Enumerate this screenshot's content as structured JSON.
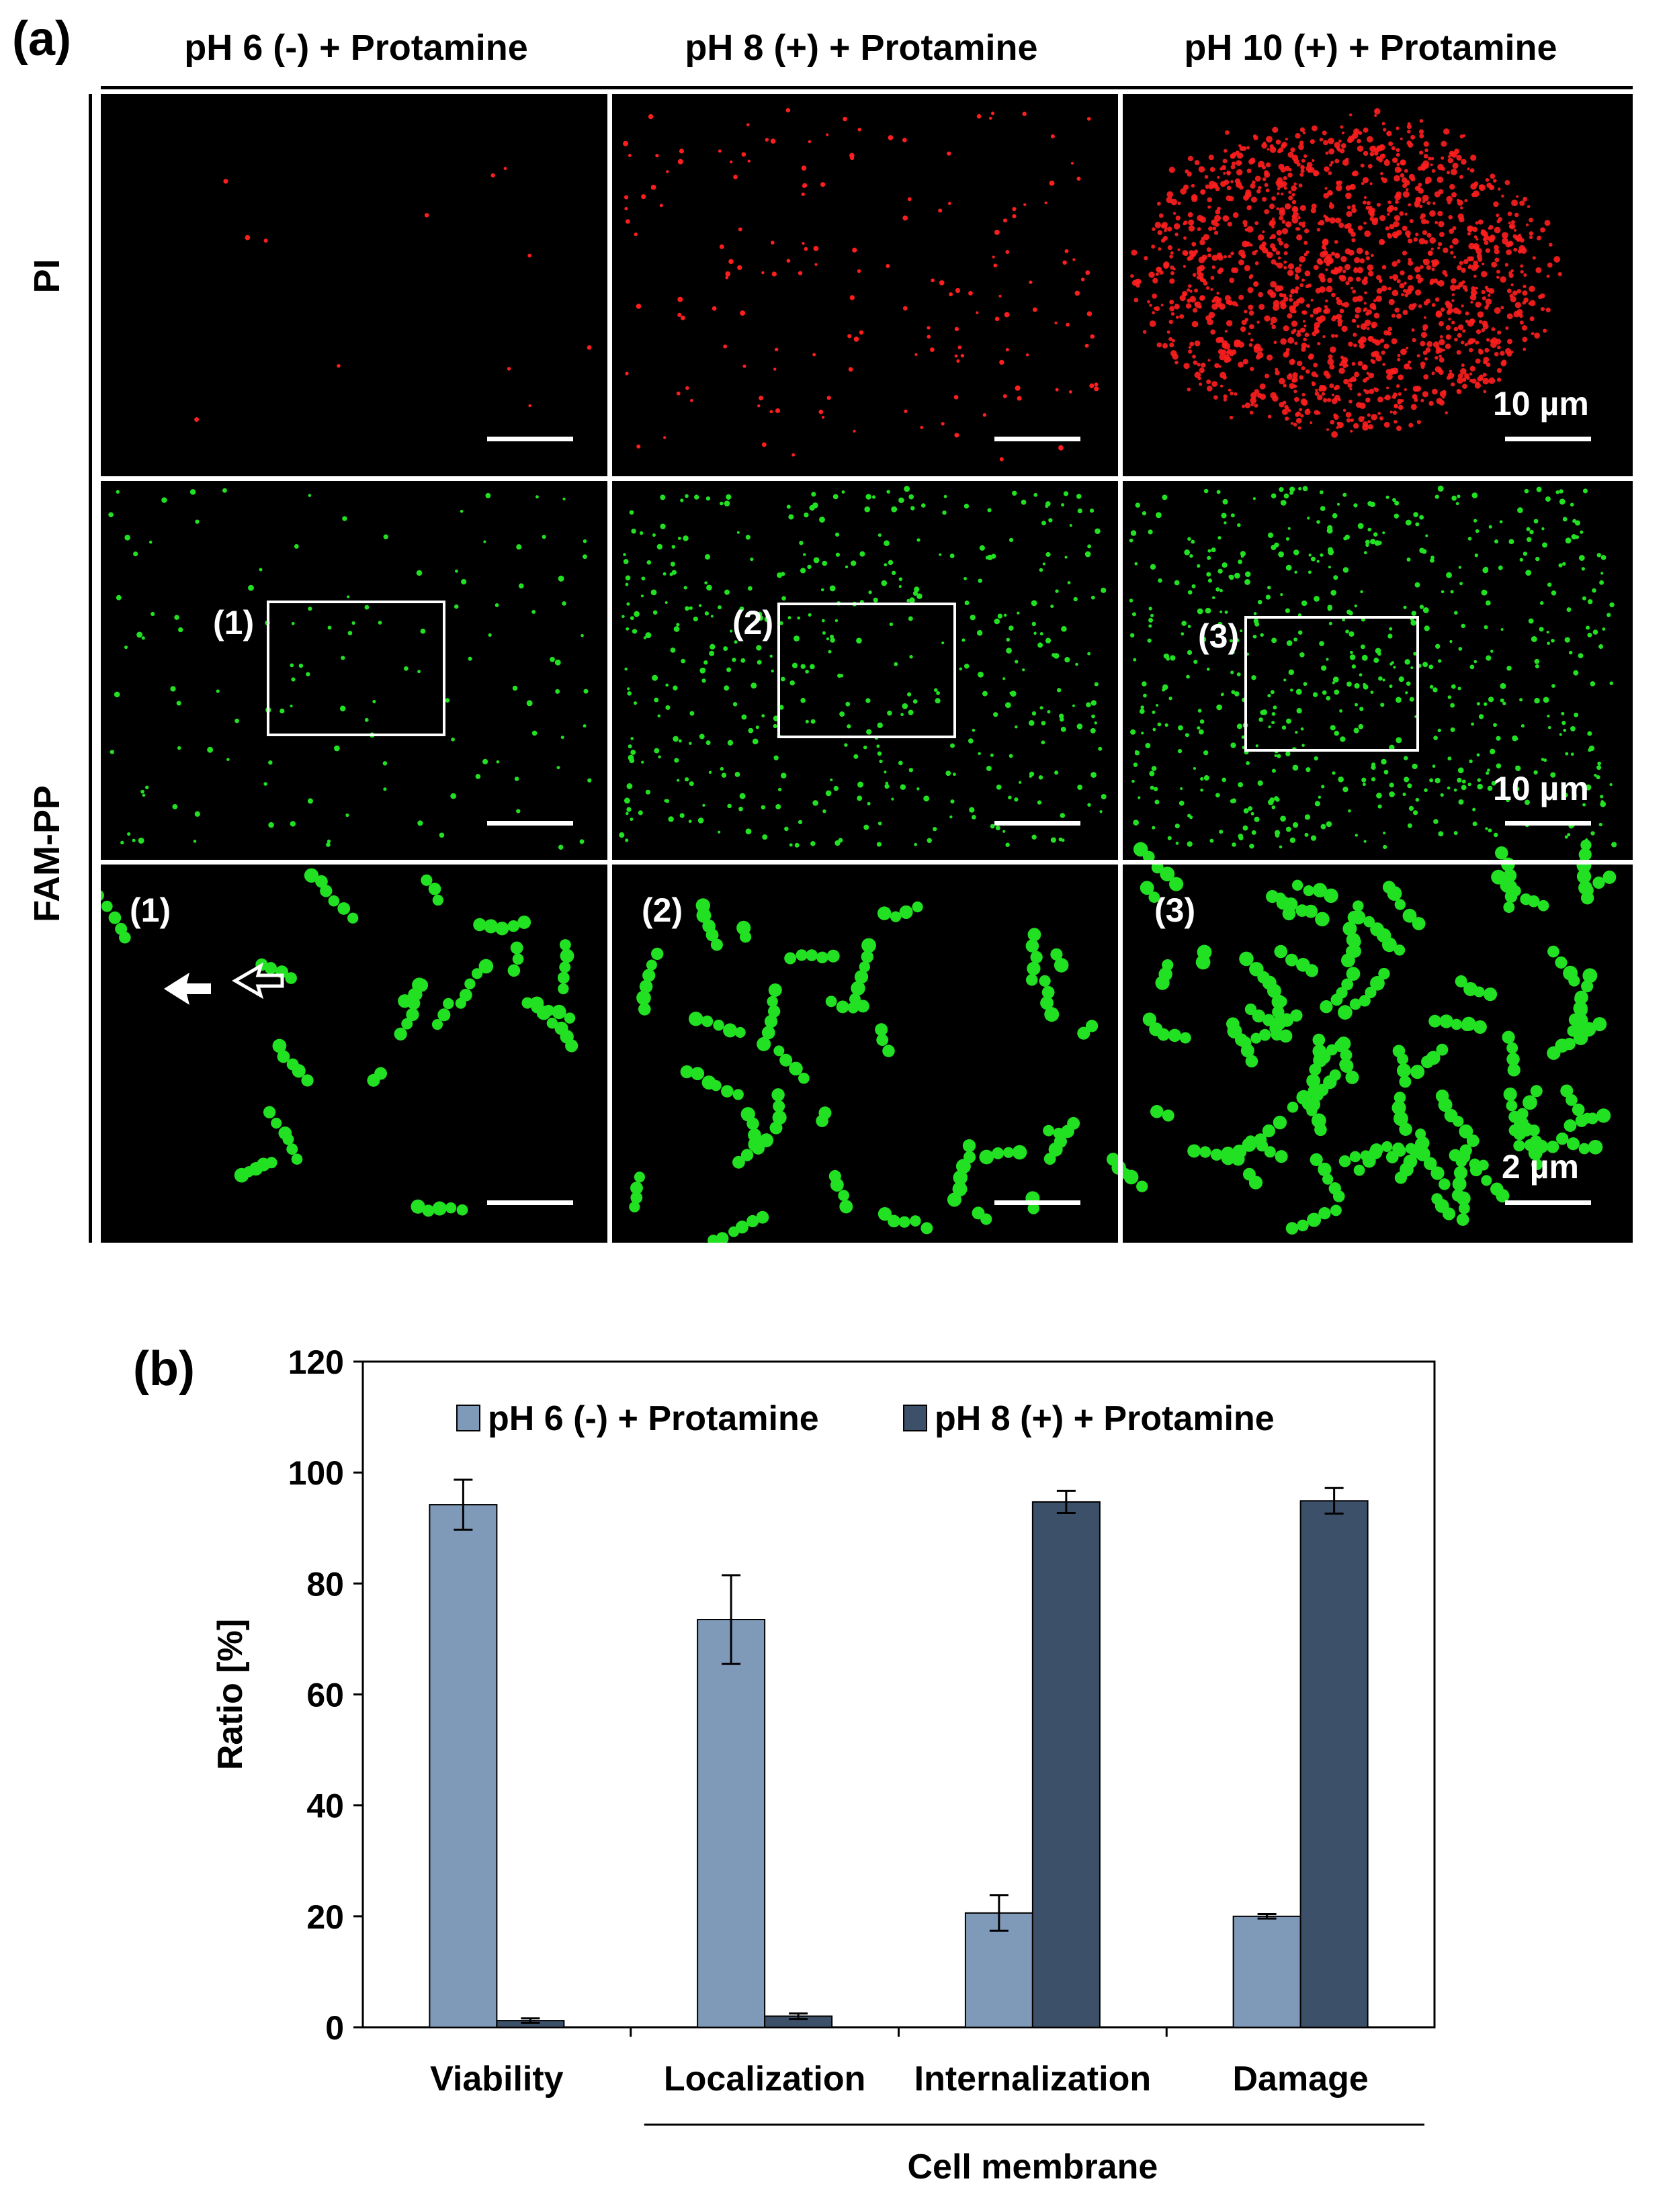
{
  "panel_a": {
    "label": "(a)",
    "columns": [
      "pH 6 (-) + Protamine",
      "pH 8 (+) + Protamine",
      "pH 10 (+) + Protamine"
    ],
    "rows": [
      "PI",
      "FAM-PP"
    ],
    "scale_labels": {
      "pi": "10 µm",
      "fam": "10 µm",
      "zoom": "2 µm"
    },
    "inset_labels": [
      "(1)",
      "(2)",
      "(3)"
    ],
    "zoom_labels": [
      "(1)",
      "(2)",
      "(3)"
    ],
    "colors": {
      "pi": "#ff1e1e",
      "fam": "#22e022"
    }
  },
  "panel_b": {
    "label": "(b)"
  },
  "chart_data": {
    "type": "bar",
    "categories": [
      "Viability",
      "Localization",
      "Internalization",
      "Damage"
    ],
    "group_label": "Cell membrane",
    "series": [
      {
        "name": "pH 6 (-) + Protamine",
        "values": [
          94.2,
          73.5,
          20.6,
          20.0
        ],
        "errors": [
          4.5,
          8.0,
          3.2,
          0.4
        ],
        "color": "#7f9ab8"
      },
      {
        "name": "pH 8 (+) + Protamine",
        "values": [
          1.2,
          2.0,
          94.7,
          94.9
        ],
        "errors": [
          0.4,
          0.5,
          2.0,
          2.3
        ],
        "color": "#3c5169"
      }
    ],
    "ylabel": "Ratio [%]",
    "xlabel": "",
    "ylim": [
      0,
      120
    ],
    "yticks": [
      0,
      20,
      40,
      60,
      80,
      100,
      120
    ],
    "legend": "top"
  }
}
